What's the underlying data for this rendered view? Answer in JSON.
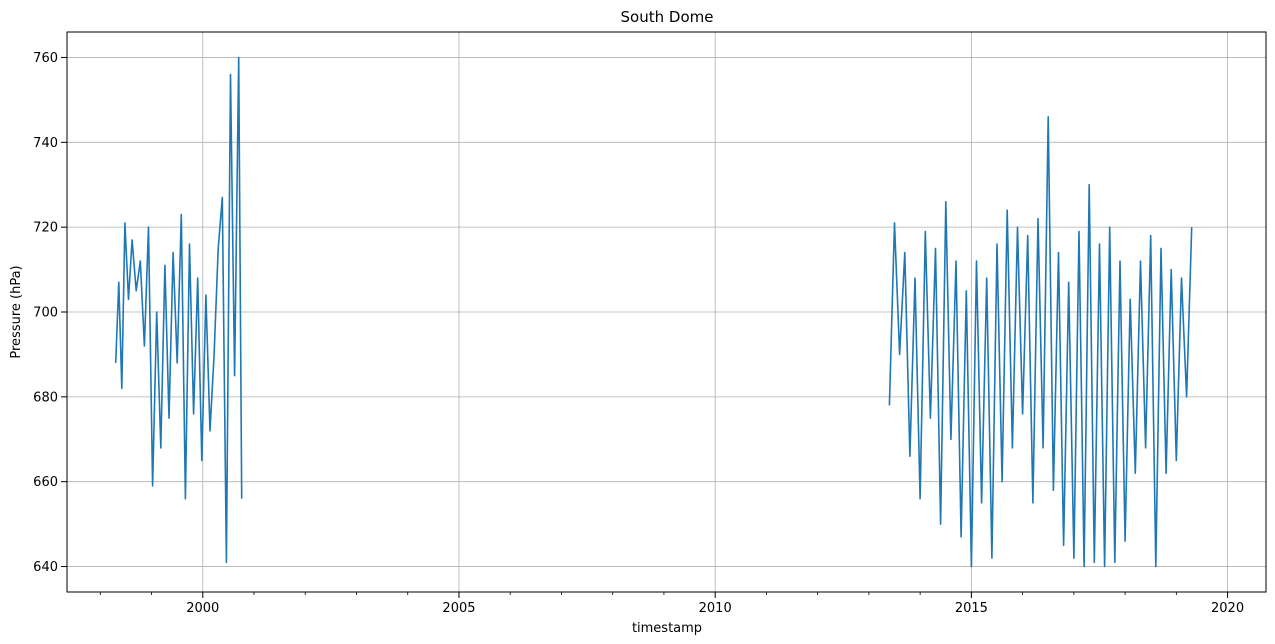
{
  "chart_data": {
    "type": "line",
    "title": "South Dome",
    "xlabel": "timestamp",
    "ylabel": "Pressure (hPa)",
    "x_ticks": [
      2000,
      2005,
      2010,
      2015,
      2020
    ],
    "x_tick_labels": [
      "2000",
      "2005",
      "2010",
      "2015",
      "2020"
    ],
    "y_ticks": [
      640,
      660,
      680,
      700,
      720,
      740,
      760
    ],
    "y_tick_labels": [
      "640",
      "660",
      "680",
      "700",
      "720",
      "740",
      "760"
    ],
    "xlim": [
      1997.35,
      2020.75
    ],
    "ylim": [
      634,
      766
    ],
    "grid": true,
    "series_color": "#1f77b4",
    "series": [
      {
        "segments": [
          {
            "x": [
              1998.3,
              1998.36,
              1998.42,
              1998.48,
              1998.55,
              1998.62,
              1998.7,
              1998.78,
              1998.86,
              1998.94,
              1999.02,
              1999.1,
              1999.18,
              1999.26,
              1999.34,
              1999.42,
              1999.5,
              1999.58,
              1999.66,
              1999.74,
              1999.82,
              1999.9,
              1999.98,
              2000.06,
              2000.14,
              2000.22,
              2000.3,
              2000.38,
              2000.46,
              2000.54,
              2000.62,
              2000.7,
              2000.76
            ],
            "y": [
              688,
              707,
              682,
              721,
              703,
              717,
              705,
              712,
              692,
              720,
              659,
              700,
              668,
              711,
              675,
              714,
              688,
              723,
              656,
              716,
              676,
              708,
              665,
              704,
              672,
              690,
              715,
              727,
              641,
              756,
              685,
              760,
              656
            ]
          },
          {
            "x": [
              2013.4,
              2013.5,
              2013.6,
              2013.7,
              2013.8,
              2013.9,
              2014.0,
              2014.1,
              2014.2,
              2014.3,
              2014.4,
              2014.5,
              2014.6,
              2014.7,
              2014.8,
              2014.9,
              2015.0,
              2015.1,
              2015.2,
              2015.3,
              2015.4,
              2015.5,
              2015.6,
              2015.7,
              2015.8,
              2015.9,
              2016.0,
              2016.1,
              2016.2,
              2016.3,
              2016.4,
              2016.5,
              2016.6,
              2016.7,
              2016.8,
              2016.9,
              2017.0,
              2017.1,
              2017.2,
              2017.3,
              2017.4,
              2017.5,
              2017.6,
              2017.7,
              2017.8,
              2017.9,
              2018.0,
              2018.1,
              2018.2,
              2018.3,
              2018.4,
              2018.5,
              2018.6,
              2018.7,
              2018.8,
              2018.9,
              2019.0,
              2019.1,
              2019.2,
              2019.3
            ],
            "y": [
              678,
              721,
              690,
              714,
              666,
              708,
              656,
              719,
              675,
              715,
              650,
              726,
              670,
              712,
              647,
              705,
              640,
              712,
              655,
              708,
              642,
              716,
              660,
              724,
              668,
              720,
              676,
              718,
              655,
              722,
              668,
              746,
              658,
              714,
              645,
              707,
              642,
              719,
              640,
              730,
              641,
              716,
              640,
              720,
              641,
              712,
              646,
              703,
              662,
              712,
              668,
              718,
              640,
              715,
              662,
              710,
              665,
              708,
              680,
              720
            ]
          }
        ]
      }
    ]
  }
}
